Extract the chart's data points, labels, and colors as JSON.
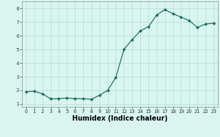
{
  "x": [
    0,
    1,
    2,
    3,
    4,
    5,
    6,
    7,
    8,
    9,
    10,
    11,
    12,
    13,
    14,
    15,
    16,
    17,
    18,
    19,
    20,
    21,
    22,
    23
  ],
  "y": [
    1.9,
    1.95,
    1.75,
    1.4,
    1.4,
    1.45,
    1.4,
    1.4,
    1.35,
    1.65,
    2.0,
    2.95,
    5.0,
    5.7,
    6.35,
    6.65,
    7.5,
    7.9,
    7.6,
    7.35,
    7.1,
    6.6,
    6.85,
    6.9
  ],
  "line_color": "#1a6b5a",
  "marker": "D",
  "marker_size": 2.2,
  "bg_color": "#d8f5f0",
  "grid_color": "#b8ddd8",
  "xlabel": "Humidex (Indice chaleur)",
  "xlim": [
    -0.5,
    23.5
  ],
  "ylim": [
    0.8,
    8.5
  ],
  "yticks": [
    1,
    2,
    3,
    4,
    5,
    6,
    7,
    8
  ],
  "xticks": [
    0,
    1,
    2,
    3,
    4,
    5,
    6,
    7,
    8,
    9,
    10,
    11,
    12,
    13,
    14,
    15,
    16,
    17,
    18,
    19,
    20,
    21,
    22,
    23
  ],
  "tick_fontsize": 5.0,
  "xlabel_fontsize": 7.0,
  "xlabel_bold": true
}
